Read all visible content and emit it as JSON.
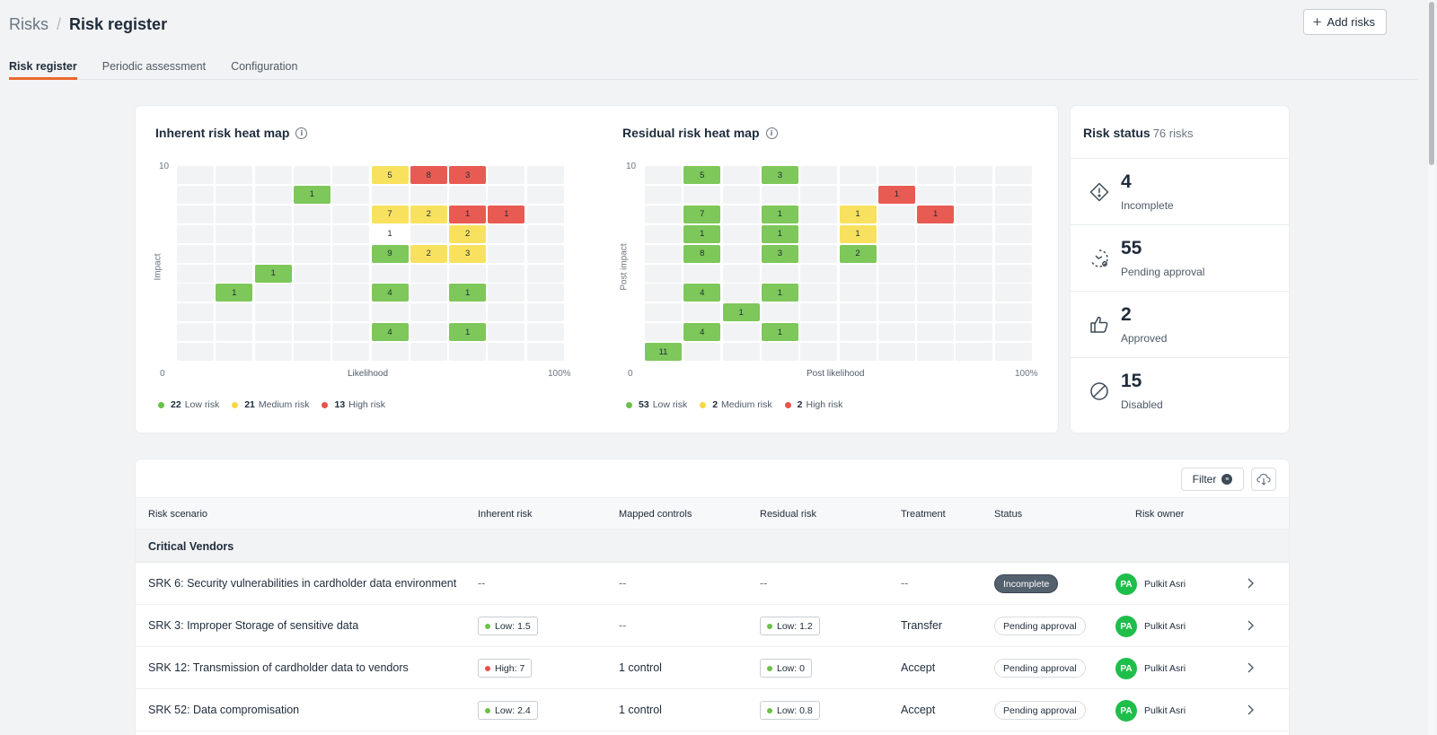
{
  "breadcrumb": {
    "root": "Risks",
    "separator": "/",
    "current": "Risk register"
  },
  "header": {
    "add_button": "Add risks"
  },
  "tabs": [
    {
      "label": "Risk register",
      "active": true
    },
    {
      "label": "Periodic assessment",
      "active": false
    },
    {
      "label": "Configuration",
      "active": false
    }
  ],
  "inherent": {
    "title": "Inherent risk heat map",
    "y_label": "Impact",
    "x_label": "Likelihood",
    "y_max": "10",
    "origin": "0",
    "x_max": "100%",
    "legend": [
      {
        "count": "22",
        "label": "Low risk",
        "color": "#6cc04a"
      },
      {
        "count": "21",
        "label": "Medium risk",
        "color": "#f5d945"
      },
      {
        "count": "13",
        "label": "High risk",
        "color": "#e5534b"
      }
    ],
    "cells": [
      {
        "row": 0,
        "col": 5,
        "value": "5",
        "level": "med"
      },
      {
        "row": 0,
        "col": 6,
        "value": "8",
        "level": "high"
      },
      {
        "row": 0,
        "col": 7,
        "value": "3",
        "level": "high"
      },
      {
        "row": 1,
        "col": 3,
        "value": "1",
        "level": "low"
      },
      {
        "row": 2,
        "col": 5,
        "value": "7",
        "level": "med"
      },
      {
        "row": 2,
        "col": 6,
        "value": "2",
        "level": "med"
      },
      {
        "row": 2,
        "col": 7,
        "value": "1",
        "level": "high"
      },
      {
        "row": 2,
        "col": 8,
        "value": "1",
        "level": "high"
      },
      {
        "row": 3,
        "col": 5,
        "value": "1",
        "level": "white"
      },
      {
        "row": 3,
        "col": 7,
        "value": "2",
        "level": "med"
      },
      {
        "row": 4,
        "col": 5,
        "value": "9",
        "level": "low"
      },
      {
        "row": 4,
        "col": 6,
        "value": "2",
        "level": "med"
      },
      {
        "row": 4,
        "col": 7,
        "value": "3",
        "level": "med"
      },
      {
        "row": 5,
        "col": 2,
        "value": "1",
        "level": "low"
      },
      {
        "row": 6,
        "col": 1,
        "value": "1",
        "level": "low"
      },
      {
        "row": 6,
        "col": 5,
        "value": "4",
        "level": "low"
      },
      {
        "row": 6,
        "col": 7,
        "value": "1",
        "level": "low"
      },
      {
        "row": 8,
        "col": 5,
        "value": "4",
        "level": "low"
      },
      {
        "row": 8,
        "col": 7,
        "value": "1",
        "level": "low"
      }
    ]
  },
  "residual": {
    "title": "Residual risk heat map",
    "y_label": "Post impact",
    "x_label": "Post likelihood",
    "y_max": "10",
    "origin": "0",
    "x_max": "100%",
    "legend": [
      {
        "count": "53",
        "label": "Low risk",
        "color": "#6cc04a"
      },
      {
        "count": "2",
        "label": "Medium risk",
        "color": "#f5d945"
      },
      {
        "count": "2",
        "label": "High risk",
        "color": "#e5534b"
      }
    ],
    "cells": [
      {
        "row": 0,
        "col": 1,
        "value": "5",
        "level": "low"
      },
      {
        "row": 0,
        "col": 3,
        "value": "3",
        "level": "low"
      },
      {
        "row": 1,
        "col": 6,
        "value": "1",
        "level": "high"
      },
      {
        "row": 2,
        "col": 1,
        "value": "7",
        "level": "low"
      },
      {
        "row": 2,
        "col": 3,
        "value": "1",
        "level": "low"
      },
      {
        "row": 2,
        "col": 5,
        "value": "1",
        "level": "med"
      },
      {
        "row": 2,
        "col": 7,
        "value": "1",
        "level": "high"
      },
      {
        "row": 3,
        "col": 1,
        "value": "1",
        "level": "low"
      },
      {
        "row": 3,
        "col": 3,
        "value": "1",
        "level": "low"
      },
      {
        "row": 3,
        "col": 5,
        "value": "1",
        "level": "med"
      },
      {
        "row": 4,
        "col": 1,
        "value": "8",
        "level": "low"
      },
      {
        "row": 4,
        "col": 3,
        "value": "3",
        "level": "low"
      },
      {
        "row": 4,
        "col": 5,
        "value": "2",
        "level": "low"
      },
      {
        "row": 6,
        "col": 1,
        "value": "4",
        "level": "low"
      },
      {
        "row": 6,
        "col": 3,
        "value": "1",
        "level": "low"
      },
      {
        "row": 7,
        "col": 2,
        "value": "1",
        "level": "low"
      },
      {
        "row": 8,
        "col": 1,
        "value": "4",
        "level": "low"
      },
      {
        "row": 8,
        "col": 3,
        "value": "1",
        "level": "low"
      },
      {
        "row": 9,
        "col": 0,
        "value": "11",
        "level": "low"
      }
    ]
  },
  "risk_status": {
    "title": "Risk status",
    "total": "76 risks",
    "items": [
      {
        "count": "4",
        "label": "Incomplete",
        "icon": "diamond-alert-icon"
      },
      {
        "count": "55",
        "label": "Pending approval",
        "icon": "pending-clock-icon"
      },
      {
        "count": "2",
        "label": "Approved",
        "icon": "thumbs-up-icon"
      },
      {
        "count": "15",
        "label": "Disabled",
        "icon": "disabled-circle-icon"
      }
    ]
  },
  "table": {
    "filter_label": "Filter",
    "columns": [
      "Risk scenario",
      "Inherent risk",
      "Mapped controls",
      "Residual risk",
      "Treatment",
      "Status",
      "Risk owner"
    ],
    "group": "Critical Vendors",
    "rows": [
      {
        "scenario": "SRK 6: Security vulnerabilities in cardholder data environment",
        "inherent": "--",
        "inherent_level": "",
        "controls": "--",
        "residual": "--",
        "residual_level": "",
        "treatment": "--",
        "status": "Incomplete",
        "status_type": "incomplete",
        "owner_initials": "PA",
        "owner": "Pulkit Asri"
      },
      {
        "scenario": "SRK 3: Improper Storage of sensitive data",
        "inherent": "Low: 1.5",
        "inherent_level": "low",
        "controls": "--",
        "residual": "Low: 1.2",
        "residual_level": "low",
        "treatment": "Transfer",
        "status": "Pending approval",
        "status_type": "pending",
        "owner_initials": "PA",
        "owner": "Pulkit Asri"
      },
      {
        "scenario": "SRK 12: Transmission of cardholder data to vendors",
        "inherent": "High: 7",
        "inherent_level": "high",
        "controls": "1 control",
        "residual": "Low: 0",
        "residual_level": "low",
        "treatment": "Accept",
        "status": "Pending approval",
        "status_type": "pending",
        "owner_initials": "PA",
        "owner": "Pulkit Asri"
      },
      {
        "scenario": "SRK 52: Data compromisation",
        "inherent": "Low: 2.4",
        "inherent_level": "low",
        "controls": "1 control",
        "residual": "Low: 0.8",
        "residual_level": "low",
        "treatment": "Accept",
        "status": "Pending approval",
        "status_type": "pending",
        "owner_initials": "PA",
        "owner": "Pulkit Asri"
      }
    ]
  },
  "colors": {
    "accent": "#ea6a2e",
    "low": "#7ec75a",
    "medium": "#f8e15e",
    "high": "#e85b52",
    "avatar": "#1fbe4b"
  }
}
